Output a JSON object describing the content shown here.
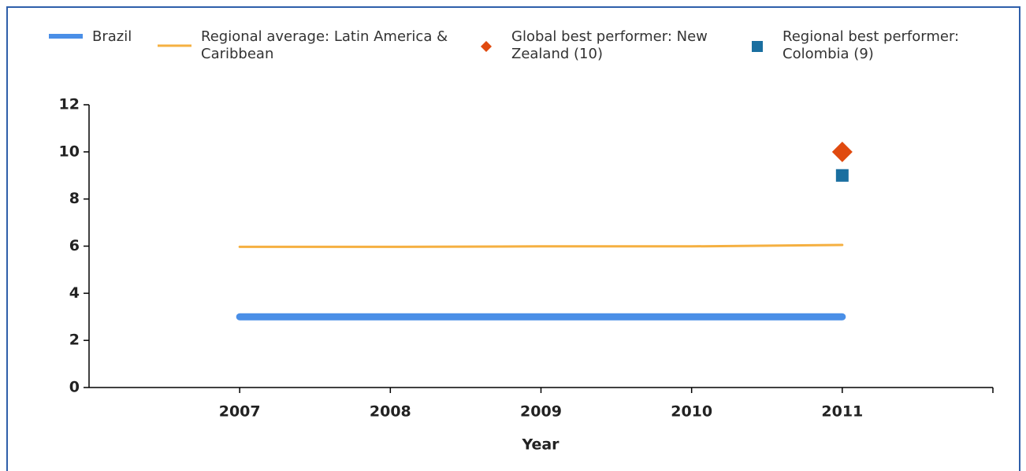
{
  "chart_data": {
    "type": "line",
    "x": [
      2007,
      2008,
      2009,
      2010,
      2011
    ],
    "xlim": [
      2006,
      2012
    ],
    "xticks": [
      2007,
      2008,
      2009,
      2010,
      2011
    ],
    "ylim": [
      0,
      12
    ],
    "yticks": [
      0,
      2,
      4,
      6,
      8,
      10,
      12
    ],
    "xlabel": "Year",
    "series": [
      {
        "name": "Brazil",
        "color": "#4a8fe7",
        "values": [
          3,
          3,
          3,
          3,
          3
        ]
      },
      {
        "name": "Regional average: Latin America & Caribbean",
        "color": "#f5b041",
        "values": [
          5.97,
          5.97,
          5.99,
          5.99,
          6.05
        ]
      },
      {
        "name": "Global best performer: New Zealand (10)",
        "color": "#e04a0f",
        "marker": "diamond",
        "x": [
          2011
        ],
        "values": [
          10
        ]
      },
      {
        "name": "Regional best performer: Colombia (9)",
        "color": "#1a6fa0",
        "marker": "square",
        "x": [
          2011
        ],
        "values": [
          9
        ]
      }
    ]
  }
}
